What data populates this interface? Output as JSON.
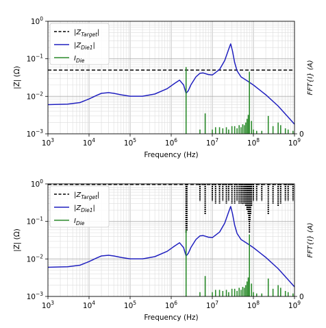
{
  "chart_data": [
    {
      "type": "line",
      "panel": "top",
      "xlabel": "Frequency (Hz)",
      "ylabel": "|Z| (Ω)",
      "y2label": "FFT{I} (A)",
      "xscale": "log",
      "yscale": "log",
      "xlim": [
        1000,
        1000000000
      ],
      "ylim": [
        0.001,
        1
      ],
      "y2_tick_label": "0",
      "grid": true,
      "legend_position": "top-left",
      "x_ticks": [
        {
          "base": "10",
          "exp": "3"
        },
        {
          "base": "10",
          "exp": "4"
        },
        {
          "base": "10",
          "exp": "5"
        },
        {
          "base": "10",
          "exp": "6"
        },
        {
          "base": "10",
          "exp": "7"
        },
        {
          "base": "10",
          "exp": "8"
        },
        {
          "base": "10",
          "exp": "9"
        }
      ],
      "y_ticks": [
        {
          "base": "10",
          "exp": "−3"
        },
        {
          "base": "10",
          "exp": "−2"
        },
        {
          "base": "10",
          "exp": "−1"
        },
        {
          "base": "10",
          "exp": "0"
        }
      ],
      "series": [
        {
          "name": "|Z_Target|",
          "legend": {
            "sym": "|Z",
            "sub": "Target",
            "end": "|"
          },
          "style": "dashed",
          "color": "#000000",
          "x": [
            1000,
            1000000000
          ],
          "y": [
            0.05,
            0.05
          ]
        },
        {
          "name": "|Z_Die1|",
          "legend": {
            "sym": "|Z",
            "sub": "Die1",
            "end": "|"
          },
          "style": "solid",
          "color": "#1f1fbf",
          "x": [
            1000,
            3000,
            6000,
            10000,
            15000,
            20000,
            30000,
            40000,
            60000,
            100000,
            200000,
            400000,
            800000,
            1200000,
            1600000,
            2000000,
            2300000,
            2600000,
            3000000,
            4000000,
            5000000,
            6000000,
            8000000,
            10000000,
            15000000,
            20000000,
            25000000,
            28000000,
            31000000,
            35000000,
            40000000,
            50000000,
            70000000,
            100000000,
            200000000,
            400000000,
            700000000,
            1000000000
          ],
          "y": [
            0.006,
            0.0062,
            0.0068,
            0.0085,
            0.0105,
            0.012,
            0.0125,
            0.012,
            0.011,
            0.01,
            0.01,
            0.0115,
            0.016,
            0.022,
            0.027,
            0.02,
            0.012,
            0.014,
            0.02,
            0.033,
            0.041,
            0.042,
            0.038,
            0.037,
            0.052,
            0.09,
            0.18,
            0.25,
            0.16,
            0.08,
            0.048,
            0.033,
            0.026,
            0.02,
            0.011,
            0.0055,
            0.0028,
            0.0018
          ]
        },
        {
          "name": "I_Die",
          "legend": {
            "sym": "I",
            "sub": "Die",
            "end": ""
          },
          "style": "stem",
          "color": "#2a8a2a",
          "x": [
            2300000,
            5000000,
            6700000,
            10000000,
            12000000,
            15000000,
            18000000,
            22000000,
            25000000,
            30000000,
            35000000,
            40000000,
            45000000,
            50000000,
            55000000,
            60000000,
            65000000,
            70000000,
            75000000,
            80000000,
            90000000,
            100000000,
            120000000,
            160000000,
            230000000,
            300000000,
            400000000,
            460000000,
            600000000,
            700000000,
            920000000
          ],
          "y": [
            0.06,
            0.0013,
            0.0035,
            0.0013,
            0.0015,
            0.0015,
            0.0014,
            0.0015,
            0.0013,
            0.0016,
            0.0016,
            0.0014,
            0.0017,
            0.0015,
            0.0018,
            0.0017,
            0.002,
            0.0025,
            0.0032,
            0.045,
            0.0022,
            0.0013,
            0.0012,
            0.0012,
            0.003,
            0.0016,
            0.002,
            0.0017,
            0.0014,
            0.0013,
            0.0012
          ]
        }
      ]
    },
    {
      "type": "line",
      "panel": "bottom",
      "xlabel": "Frequency (Hz)",
      "ylabel": "|Z| (Ω)",
      "y2label": "FFT{I} (A)",
      "xscale": "log",
      "yscale": "log",
      "xlim": [
        1000,
        1000000000
      ],
      "ylim": [
        0.001,
        1
      ],
      "y2_tick_label": "0",
      "grid": true,
      "legend_position": "top-left",
      "x_ticks": [
        {
          "base": "10",
          "exp": "3"
        },
        {
          "base": "10",
          "exp": "4"
        },
        {
          "base": "10",
          "exp": "5"
        },
        {
          "base": "10",
          "exp": "6"
        },
        {
          "base": "10",
          "exp": "7"
        },
        {
          "base": "10",
          "exp": "8"
        },
        {
          "base": "10",
          "exp": "9"
        }
      ],
      "y_ticks": [
        {
          "base": "10",
          "exp": "−3"
        },
        {
          "base": "10",
          "exp": "−2"
        },
        {
          "base": "10",
          "exp": "−1"
        },
        {
          "base": "10",
          "exp": "0"
        }
      ],
      "series": [
        {
          "name": "|Z_Target|",
          "legend": {
            "sym": "|Z",
            "sub": "Target",
            "end": "|"
          },
          "style": "dashed-notched",
          "color": "#000000",
          "x": [
            1000,
            1000000000
          ],
          "y": [
            1,
            1
          ],
          "notch_x": [
            2300000,
            2350000,
            2400000,
            5000000,
            6700000,
            10000000,
            12000000,
            15000000,
            18000000,
            22000000,
            25000000,
            30000000,
            35000000,
            40000000,
            45000000,
            50000000,
            55000000,
            60000000,
            65000000,
            70000000,
            75000000,
            78000000,
            80000000,
            82000000,
            85000000,
            90000000,
            100000000,
            120000000,
            160000000,
            230000000,
            300000000,
            400000000,
            460000000,
            600000000,
            700000000,
            920000000
          ],
          "notch_y": [
            0.05,
            0.06,
            0.055,
            0.35,
            0.15,
            0.35,
            0.3,
            0.3,
            0.35,
            0.3,
            0.35,
            0.3,
            0.3,
            0.35,
            0.3,
            0.3,
            0.28,
            0.3,
            0.25,
            0.2,
            0.15,
            0.1,
            0.05,
            0.1,
            0.15,
            0.25,
            0.35,
            0.35,
            0.35,
            0.15,
            0.3,
            0.25,
            0.3,
            0.35,
            0.35,
            0.35
          ]
        },
        {
          "name": "|Z_Die1|",
          "legend": {
            "sym": "|Z",
            "sub": "Die1",
            "end": "|"
          },
          "style": "solid",
          "color": "#1f1fbf",
          "x": [
            1000,
            3000,
            6000,
            10000,
            15000,
            20000,
            30000,
            40000,
            60000,
            100000,
            200000,
            400000,
            800000,
            1200000,
            1600000,
            2000000,
            2300000,
            2600000,
            3000000,
            4000000,
            5000000,
            6000000,
            8000000,
            10000000,
            15000000,
            20000000,
            25000000,
            28000000,
            31000000,
            35000000,
            40000000,
            50000000,
            70000000,
            100000000,
            200000000,
            400000000,
            700000000,
            1000000000
          ],
          "y": [
            0.006,
            0.0062,
            0.0068,
            0.0085,
            0.0105,
            0.012,
            0.0125,
            0.012,
            0.011,
            0.01,
            0.01,
            0.0115,
            0.016,
            0.022,
            0.027,
            0.02,
            0.012,
            0.014,
            0.02,
            0.033,
            0.041,
            0.042,
            0.038,
            0.037,
            0.052,
            0.09,
            0.18,
            0.25,
            0.16,
            0.08,
            0.048,
            0.033,
            0.026,
            0.02,
            0.011,
            0.0055,
            0.0028,
            0.0018
          ]
        },
        {
          "name": "I_Die",
          "legend": {
            "sym": "I",
            "sub": "Die",
            "end": ""
          },
          "style": "stem",
          "color": "#2a8a2a",
          "x": [
            2300000,
            5000000,
            6700000,
            10000000,
            12000000,
            15000000,
            18000000,
            22000000,
            25000000,
            30000000,
            35000000,
            40000000,
            45000000,
            50000000,
            55000000,
            60000000,
            65000000,
            70000000,
            75000000,
            80000000,
            90000000,
            100000000,
            120000000,
            160000000,
            230000000,
            300000000,
            400000000,
            460000000,
            600000000,
            700000000,
            920000000
          ],
          "y": [
            0.06,
            0.0013,
            0.0035,
            0.0013,
            0.0015,
            0.0015,
            0.0014,
            0.0015,
            0.0013,
            0.0016,
            0.0016,
            0.0014,
            0.0017,
            0.0015,
            0.0018,
            0.0017,
            0.002,
            0.0025,
            0.0032,
            0.045,
            0.0022,
            0.0013,
            0.0012,
            0.0012,
            0.003,
            0.0016,
            0.002,
            0.0017,
            0.0014,
            0.0013,
            0.0012
          ]
        }
      ]
    }
  ]
}
